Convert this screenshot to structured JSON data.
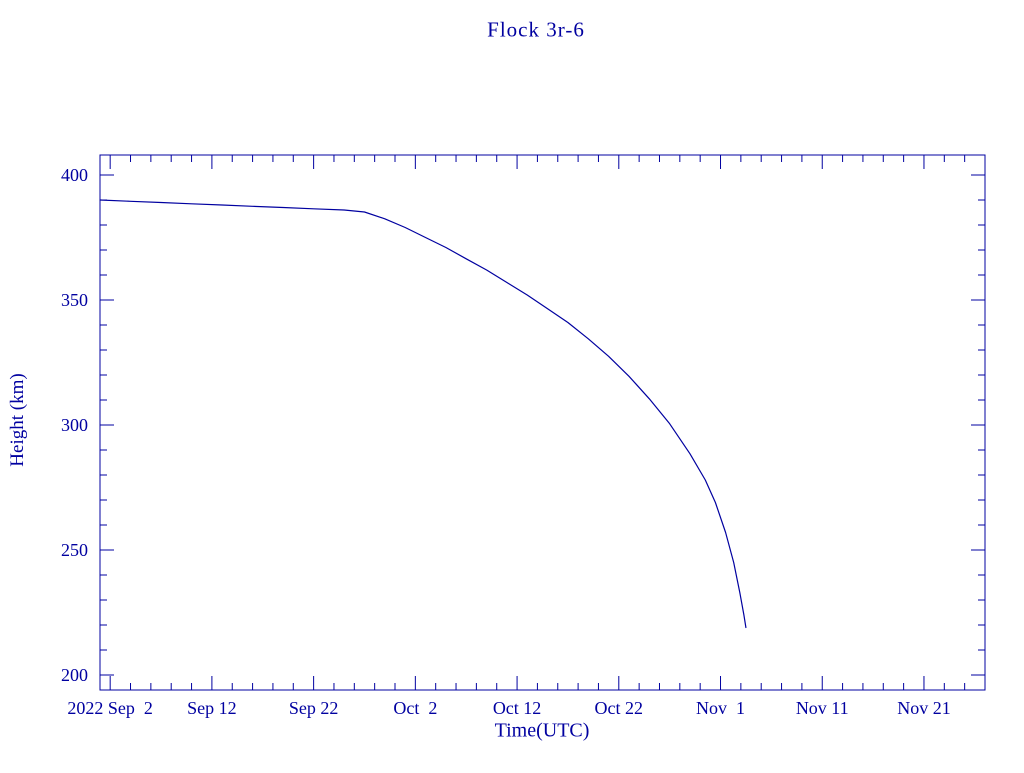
{
  "page": {
    "background": "#ffffff"
  },
  "chart_data": {
    "type": "line",
    "title": "Flock 3r-6",
    "xlabel": "Time(UTC)",
    "ylabel": "Height (km)",
    "color": "#0000a0",
    "grid": false,
    "legend": "none",
    "x_axis": {
      "unit": "days since 2022 Sep 1 (UTC)",
      "range_days": [
        0,
        87
      ],
      "major_tick_days": [
        1,
        11,
        21,
        31,
        41,
        51,
        61,
        71,
        81
      ],
      "major_tick_labels": [
        "2022 Sep  2",
        "Sep 12",
        "Sep 22",
        "Oct  2",
        "Oct 12",
        "Oct 22",
        "Nov  1",
        "Nov 11",
        "Nov 21"
      ],
      "minor_tick_step_days": 2
    },
    "y_axis": {
      "unit": "km",
      "range_km": [
        194,
        408
      ],
      "major_ticks_km": [
        200,
        250,
        300,
        350,
        400
      ],
      "major_tick_labels": [
        "200",
        "250",
        "300",
        "350",
        "400"
      ],
      "minor_tick_step_km": 10
    },
    "series": [
      {
        "name": "Flock 3r-6 height",
        "points_day_km": [
          [
            0,
            390
          ],
          [
            3,
            389.5
          ],
          [
            6,
            389
          ],
          [
            9,
            388.5
          ],
          [
            12,
            388
          ],
          [
            15,
            387.5
          ],
          [
            18,
            387
          ],
          [
            21,
            386.5
          ],
          [
            24,
            386
          ],
          [
            26,
            385.2
          ],
          [
            28,
            382.5
          ],
          [
            30,
            379
          ],
          [
            32,
            375
          ],
          [
            34,
            371
          ],
          [
            36,
            366.5
          ],
          [
            38,
            362
          ],
          [
            40,
            357
          ],
          [
            42,
            352
          ],
          [
            44,
            346.5
          ],
          [
            46,
            341
          ],
          [
            48,
            334.5
          ],
          [
            50,
            327.5
          ],
          [
            52,
            319.5
          ],
          [
            54,
            310.5
          ],
          [
            56,
            300.5
          ],
          [
            58,
            288.5
          ],
          [
            59.5,
            278
          ],
          [
            60.5,
            269
          ],
          [
            61.5,
            257
          ],
          [
            62.3,
            245
          ],
          [
            62.9,
            233
          ],
          [
            63.3,
            224
          ],
          [
            63.5,
            219
          ]
        ]
      }
    ]
  }
}
